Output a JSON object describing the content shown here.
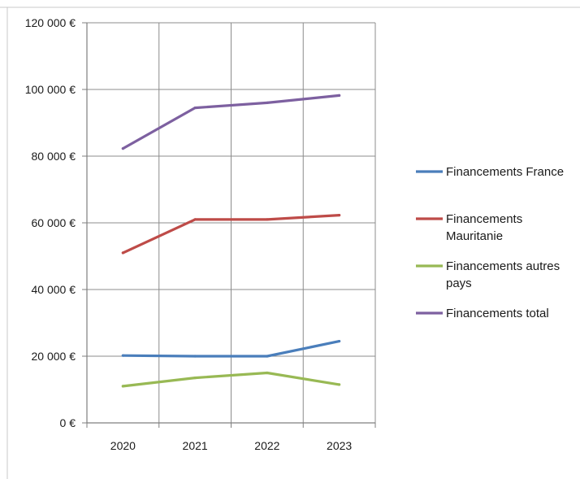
{
  "chart_data": {
    "type": "line",
    "title": "",
    "xlabel": "",
    "ylabel": "",
    "categories": [
      "2020",
      "2021",
      "2022",
      "2023"
    ],
    "ylim": [
      0,
      120000
    ],
    "y_tick_values": [
      0,
      20000,
      40000,
      60000,
      80000,
      100000,
      120000
    ],
    "y_tick_labels": [
      "0 €",
      "20 000 €",
      "40 000 €",
      "60 000 €",
      "80 000 €",
      "100 000 €",
      "120 000 €"
    ],
    "grid": true,
    "legend_position": "right",
    "series": [
      {
        "name": "Financements France",
        "legend_lines": [
          "Financements France"
        ],
        "color": "#4a7ebb",
        "values": [
          20200,
          20000,
          20000,
          24500
        ]
      },
      {
        "name": "Financements Mauritanie",
        "legend_lines": [
          "Financements",
          "Mauritanie"
        ],
        "color": "#be4b48",
        "values": [
          51000,
          61000,
          61000,
          62300
        ]
      },
      {
        "name": "Financements autres pays",
        "legend_lines": [
          "Financements autres",
          "pays"
        ],
        "color": "#98b954",
        "values": [
          11000,
          13500,
          15000,
          11500
        ]
      },
      {
        "name": "Financements total",
        "legend_lines": [
          "Financements total"
        ],
        "color": "#7d60a0",
        "values": [
          82300,
          94500,
          96000,
          98200
        ]
      }
    ]
  }
}
